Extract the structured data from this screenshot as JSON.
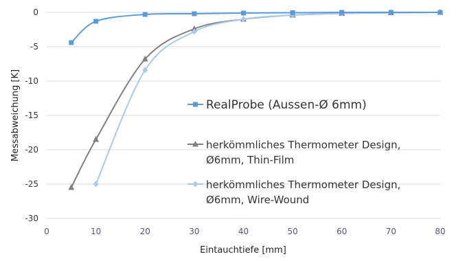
{
  "chart_data": {
    "type": "line",
    "xlabel": "Eintauchtiefe [mm]",
    "ylabel": "Messabweichung [K]",
    "xlim": [
      0,
      80
    ],
    "ylim": [
      -30,
      0
    ],
    "x_ticks": [
      0,
      10,
      20,
      30,
      40,
      50,
      60,
      70,
      80
    ],
    "y_ticks": [
      0,
      -5,
      -10,
      -15,
      -20,
      -25,
      -30
    ],
    "grid": "horizontal",
    "legend": "inside-right",
    "series": [
      {
        "name": "RealProbe (Aussen-Ø 6mm)",
        "color": "#5b9bd5",
        "marker": "square",
        "x": [
          5,
          10,
          20,
          30,
          40,
          50,
          60,
          70,
          80
        ],
        "y": [
          -4.4,
          -1.3,
          -0.3,
          -0.2,
          -0.1,
          -0.05,
          0,
          0,
          0
        ]
      },
      {
        "name": "herkömmliches Thermometer Design, Ø6mm, Thin-Film",
        "name_lines": [
          "herkömmliches Thermometer Design,",
          "Ø6mm, Thin-Film"
        ],
        "color": "#7f7f7f",
        "marker": "triangle",
        "x": [
          5,
          10,
          20,
          30,
          40,
          50,
          60,
          70,
          80
        ],
        "y": [
          -25.5,
          -18.5,
          -6.8,
          -2.4,
          -1.0,
          -0.4,
          -0.15,
          -0.05,
          0
        ]
      },
      {
        "name": "herkömmliches Thermometer Design, Ø6mm, Wire-Wound",
        "name_lines": [
          "herkömmliches Thermometer Design,",
          "Ø6mm, Wire-Wound"
        ],
        "color": "#a9c9ea",
        "marker": "diamond",
        "x": [
          10,
          20,
          30,
          40,
          50,
          60,
          70,
          80
        ],
        "y": [
          -25.0,
          -8.4,
          -2.8,
          -1.0,
          -0.4,
          -0.15,
          -0.05,
          0
        ]
      }
    ]
  }
}
